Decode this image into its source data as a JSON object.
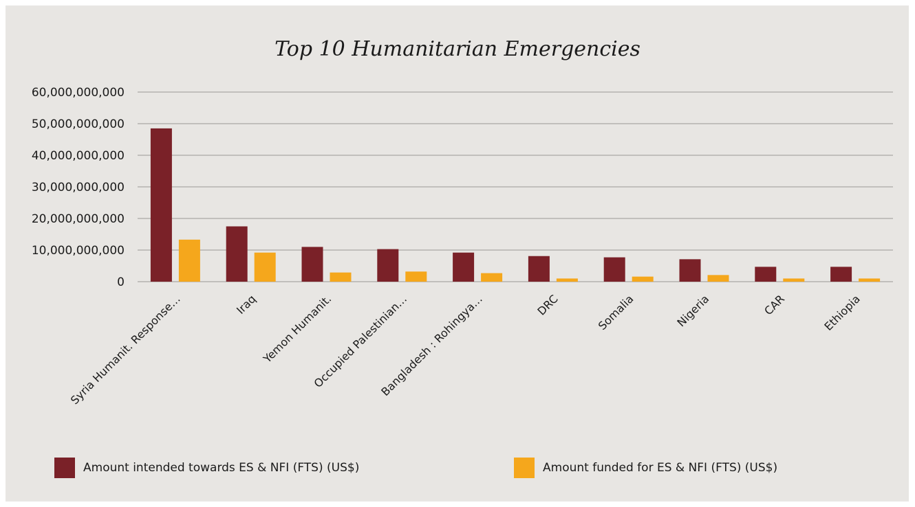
{
  "chart_data": {
    "type": "bar",
    "title": "Top 10 Humanitarian Emergencies",
    "xlabel": "",
    "ylabel": "",
    "ylim": [
      0,
      60000000000
    ],
    "yticks": [
      0,
      10000000000,
      20000000000,
      30000000000,
      40000000000,
      50000000000,
      60000000000
    ],
    "ytick_labels": [
      "0",
      "10,000,000,000",
      "20,000,000,000",
      "30,000,000,000",
      "40,000,000,000",
      "50,000,000,000",
      "60,000,000,000"
    ],
    "grid": true,
    "legend_position": "bottom",
    "categories": [
      "Syria Humanit. Response…",
      "Iraq",
      "Yemon Humanit.",
      "Occupied Palestinian…",
      "Bangladesh : Rohingya…",
      "DRC",
      "Somalia",
      "Nigeria",
      "CAR",
      "Ethiopia"
    ],
    "series": [
      {
        "name": "Amount intended towards ES & NFI (FTS) (US$)",
        "color": "#7a2128",
        "values": [
          48500000000,
          17500000000,
          11000000000,
          10300000000,
          9200000000,
          8100000000,
          7700000000,
          7100000000,
          4700000000,
          4700000000
        ]
      },
      {
        "name": "Amount funded for ES & NFI (FTS) (US$)",
        "color": "#f5a71c",
        "values": [
          13300000000,
          9200000000,
          2900000000,
          3200000000,
          2700000000,
          1000000000,
          1600000000,
          2100000000,
          1000000000,
          1000000000
        ]
      }
    ]
  }
}
